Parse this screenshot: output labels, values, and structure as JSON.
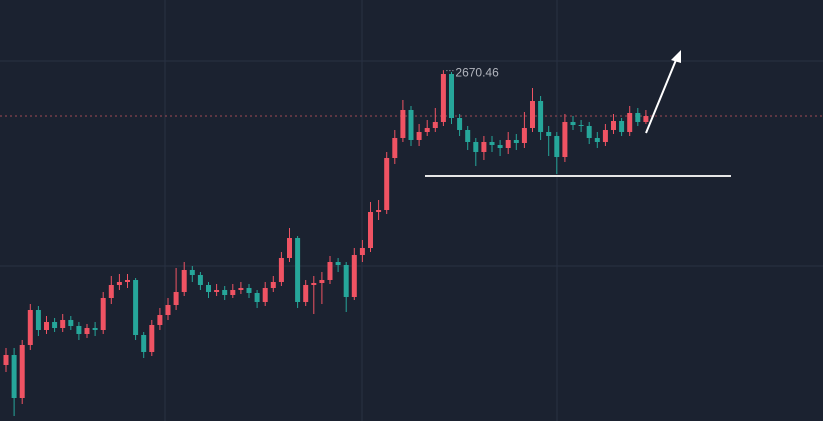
{
  "chart_data": {
    "type": "candlestick",
    "open": [
      2596.75,
      2599.25,
      2588.5,
      2601.75,
      2610.5,
      2605.5,
      2607.5,
      2606,
      2608,
      2606.5,
      2604.5,
      2606,
      2605.5,
      2613.5,
      2616.75,
      2617.5,
      2618,
      2604.25,
      2600,
      2606.75,
      2609.25,
      2611.75,
      2615,
      2620.5,
      2619.25,
      2616.75,
      2615,
      2615.5,
      2614.25,
      2615.5,
      2616,
      2614.75,
      2612.5,
      2616,
      2617.5,
      2623.5,
      2628.5,
      2612.5,
      2616.75,
      2617.25,
      2618,
      2622.5,
      2621.75,
      2613.75,
      2624.25,
      2626,
      2635,
      2635.5,
      2648.5,
      2653.5,
      2660.5,
      2653,
      2655,
      2656,
      2657.5,
      2669.5,
      2658.5,
      2655.5,
      2652.5,
      2650,
      2652.5,
      2651.75,
      2651,
      2653,
      2652.25,
      2656,
      2662.75,
      2655,
      2654,
      2648.75,
      2657.5,
      2656.75,
      2656.5,
      2653.5,
      2652.5,
      2655.5,
      2657.75,
      2655,
      2659.75,
      2657.5
    ],
    "high": [
      2601,
      2601,
      2603,
      2612,
      2611.5,
      2609,
      2608.5,
      2609.5,
      2609,
      2607.5,
      2607,
      2607.5,
      2615,
      2619,
      2619.5,
      2619.5,
      2618.5,
      2605,
      2608,
      2611,
      2613.5,
      2621,
      2622.5,
      2621.5,
      2620,
      2617.5,
      2617,
      2616.5,
      2617,
      2617.5,
      2617,
      2615.5,
      2617.5,
      2619,
      2625,
      2631,
      2629,
      2618,
      2619,
      2620,
      2624,
      2623.5,
      2622.5,
      2626,
      2628,
      2637.5,
      2638,
      2650,
      2655.5,
      2663,
      2661.5,
      2657,
      2658,
      2661,
      2670.46,
      2670,
      2659.5,
      2656.5,
      2653.5,
      2654,
      2654,
      2653,
      2655,
      2654.5,
      2660,
      2666,
      2664,
      2656.5,
      2655,
      2659.5,
      2659,
      2658,
      2657.5,
      2655,
      2657,
      2659.5,
      2658.5,
      2661.5,
      2661,
      2660.5
    ],
    "low": [
      2595,
      2584,
      2587,
      2600.5,
      2604,
      2604.5,
      2605,
      2605,
      2605.5,
      2603,
      2603.5,
      2604,
      2604.5,
      2612,
      2615.5,
      2616,
      2603,
      2598.5,
      2599,
      2605.5,
      2608,
      2610.5,
      2614,
      2617.5,
      2615.5,
      2613.5,
      2614,
      2613,
      2613.5,
      2614.5,
      2613.5,
      2611,
      2611.5,
      2615,
      2616.5,
      2622.5,
      2611,
      2611.5,
      2609.5,
      2612,
      2617,
      2620,
      2610,
      2613,
      2622.5,
      2625,
      2633,
      2634.5,
      2647,
      2652.5,
      2651.5,
      2651.5,
      2654,
      2655,
      2656.5,
      2657,
      2654,
      2650.5,
      2646.5,
      2648,
      2650,
      2649,
      2649.5,
      2650.5,
      2651,
      2655,
      2653,
      2649,
      2644.5,
      2647.5,
      2655.5,
      2655,
      2652,
      2651,
      2651.5,
      2654.5,
      2654,
      2654,
      2656.5,
      2657
    ],
    "close": [
      2599.25,
      2588.5,
      2601.75,
      2610.5,
      2605.5,
      2607.5,
      2606,
      2608,
      2606.5,
      2604.5,
      2606,
      2605.5,
      2613.5,
      2616.75,
      2617.5,
      2618,
      2604.25,
      2600,
      2606.75,
      2609.25,
      2611.75,
      2615,
      2620.5,
      2619.25,
      2616.75,
      2615,
      2615.5,
      2614.25,
      2615.5,
      2616,
      2614.75,
      2612.5,
      2616,
      2617.5,
      2623.5,
      2628.5,
      2612.5,
      2616.75,
      2617.25,
      2618,
      2622.5,
      2621.75,
      2613.75,
      2624.25,
      2626,
      2635,
      2635.5,
      2648.5,
      2653.5,
      2660.5,
      2653,
      2655,
      2656,
      2657.5,
      2669.5,
      2658.5,
      2655.5,
      2652.5,
      2650,
      2652.5,
      2651.75,
      2651,
      2653,
      2652.25,
      2656,
      2662.75,
      2655,
      2654,
      2648.75,
      2657.5,
      2656.75,
      2656.5,
      2653.5,
      2652.5,
      2655.5,
      2657.75,
      2655,
      2659.75,
      2657.5,
      2659
    ],
    "up_color": "#ef5363",
    "down_color": "#26a69a",
    "ylim": [
      2582.75,
      2688
    ],
    "high_label": "2670.46",
    "support_level": 2644
  }
}
